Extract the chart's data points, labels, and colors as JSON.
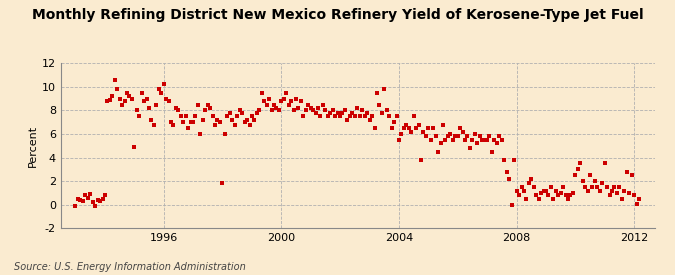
{
  "title": "Monthly Refining District New Mexico Refinery Yield of Kerosene-Type Jet Fuel",
  "ylabel": "Percent",
  "source": "Source: U.S. Energy Information Administration",
  "background_color": "#faebd0",
  "dot_color": "#cc0000",
  "ylim": [
    -2,
    12
  ],
  "yticks": [
    -2,
    0,
    2,
    4,
    6,
    8,
    10,
    12
  ],
  "xlim_start": 1992.5,
  "xlim_end": 2012.7,
  "xticks": [
    1996,
    2000,
    2004,
    2008,
    2012
  ],
  "data_points": [
    [
      1993.0,
      -0.1
    ],
    [
      1993.08,
      0.5
    ],
    [
      1993.17,
      0.4
    ],
    [
      1993.25,
      0.3
    ],
    [
      1993.33,
      0.8
    ],
    [
      1993.42,
      0.6
    ],
    [
      1993.5,
      0.9
    ],
    [
      1993.58,
      0.2
    ],
    [
      1993.67,
      -0.1
    ],
    [
      1993.75,
      0.4
    ],
    [
      1993.83,
      0.3
    ],
    [
      1993.92,
      0.5
    ],
    [
      1994.0,
      0.8
    ],
    [
      1994.08,
      8.8
    ],
    [
      1994.17,
      8.9
    ],
    [
      1994.25,
      9.2
    ],
    [
      1994.33,
      10.6
    ],
    [
      1994.42,
      9.8
    ],
    [
      1994.5,
      9.0
    ],
    [
      1994.58,
      8.5
    ],
    [
      1994.67,
      8.8
    ],
    [
      1994.75,
      9.5
    ],
    [
      1994.83,
      9.2
    ],
    [
      1994.92,
      9.0
    ],
    [
      1995.0,
      4.9
    ],
    [
      1995.08,
      8.0
    ],
    [
      1995.17,
      7.5
    ],
    [
      1995.25,
      9.5
    ],
    [
      1995.33,
      8.8
    ],
    [
      1995.42,
      9.0
    ],
    [
      1995.5,
      8.2
    ],
    [
      1995.58,
      7.2
    ],
    [
      1995.67,
      6.8
    ],
    [
      1995.75,
      8.5
    ],
    [
      1995.83,
      9.8
    ],
    [
      1995.92,
      9.5
    ],
    [
      1996.0,
      10.2
    ],
    [
      1996.08,
      9.0
    ],
    [
      1996.17,
      8.8
    ],
    [
      1996.25,
      7.0
    ],
    [
      1996.33,
      6.8
    ],
    [
      1996.42,
      8.2
    ],
    [
      1996.5,
      8.0
    ],
    [
      1996.58,
      7.5
    ],
    [
      1996.67,
      7.0
    ],
    [
      1996.75,
      7.5
    ],
    [
      1996.83,
      6.5
    ],
    [
      1996.92,
      7.0
    ],
    [
      1997.0,
      7.0
    ],
    [
      1997.08,
      7.5
    ],
    [
      1997.17,
      8.5
    ],
    [
      1997.25,
      6.0
    ],
    [
      1997.33,
      7.2
    ],
    [
      1997.42,
      8.0
    ],
    [
      1997.5,
      8.5
    ],
    [
      1997.58,
      8.2
    ],
    [
      1997.67,
      7.5
    ],
    [
      1997.75,
      6.8
    ],
    [
      1997.83,
      7.2
    ],
    [
      1997.92,
      7.0
    ],
    [
      1998.0,
      1.8
    ],
    [
      1998.08,
      6.0
    ],
    [
      1998.17,
      7.5
    ],
    [
      1998.25,
      7.8
    ],
    [
      1998.33,
      7.2
    ],
    [
      1998.42,
      6.8
    ],
    [
      1998.5,
      7.5
    ],
    [
      1998.58,
      8.0
    ],
    [
      1998.67,
      7.8
    ],
    [
      1998.75,
      7.0
    ],
    [
      1998.83,
      7.2
    ],
    [
      1998.92,
      6.8
    ],
    [
      1999.0,
      7.5
    ],
    [
      1999.08,
      7.2
    ],
    [
      1999.17,
      7.8
    ],
    [
      1999.25,
      8.0
    ],
    [
      1999.33,
      9.5
    ],
    [
      1999.42,
      8.8
    ],
    [
      1999.5,
      8.5
    ],
    [
      1999.58,
      9.0
    ],
    [
      1999.67,
      8.0
    ],
    [
      1999.75,
      8.5
    ],
    [
      1999.83,
      8.2
    ],
    [
      1999.92,
      8.0
    ],
    [
      2000.0,
      8.8
    ],
    [
      2000.08,
      9.0
    ],
    [
      2000.17,
      9.5
    ],
    [
      2000.25,
      8.5
    ],
    [
      2000.33,
      8.8
    ],
    [
      2000.42,
      8.0
    ],
    [
      2000.5,
      9.0
    ],
    [
      2000.58,
      8.2
    ],
    [
      2000.67,
      8.8
    ],
    [
      2000.75,
      7.5
    ],
    [
      2000.83,
      8.0
    ],
    [
      2000.92,
      8.5
    ],
    [
      2001.0,
      8.2
    ],
    [
      2001.08,
      8.0
    ],
    [
      2001.17,
      7.8
    ],
    [
      2001.25,
      8.2
    ],
    [
      2001.33,
      7.5
    ],
    [
      2001.42,
      8.5
    ],
    [
      2001.5,
      8.0
    ],
    [
      2001.58,
      7.5
    ],
    [
      2001.67,
      7.8
    ],
    [
      2001.75,
      8.0
    ],
    [
      2001.83,
      7.5
    ],
    [
      2001.92,
      7.8
    ],
    [
      2002.0,
      7.5
    ],
    [
      2002.08,
      7.8
    ],
    [
      2002.17,
      8.0
    ],
    [
      2002.25,
      7.2
    ],
    [
      2002.33,
      7.5
    ],
    [
      2002.42,
      7.8
    ],
    [
      2002.5,
      7.5
    ],
    [
      2002.58,
      8.2
    ],
    [
      2002.67,
      7.5
    ],
    [
      2002.75,
      8.0
    ],
    [
      2002.83,
      7.5
    ],
    [
      2002.92,
      7.8
    ],
    [
      2003.0,
      7.2
    ],
    [
      2003.08,
      7.5
    ],
    [
      2003.17,
      6.5
    ],
    [
      2003.25,
      9.5
    ],
    [
      2003.33,
      8.5
    ],
    [
      2003.42,
      7.8
    ],
    [
      2003.5,
      9.8
    ],
    [
      2003.58,
      8.0
    ],
    [
      2003.67,
      7.5
    ],
    [
      2003.75,
      6.5
    ],
    [
      2003.83,
      7.0
    ],
    [
      2003.92,
      7.5
    ],
    [
      2004.0,
      5.5
    ],
    [
      2004.08,
      6.0
    ],
    [
      2004.17,
      6.5
    ],
    [
      2004.25,
      6.8
    ],
    [
      2004.33,
      6.5
    ],
    [
      2004.42,
      6.2
    ],
    [
      2004.5,
      7.5
    ],
    [
      2004.58,
      6.5
    ],
    [
      2004.67,
      6.8
    ],
    [
      2004.75,
      3.8
    ],
    [
      2004.83,
      6.2
    ],
    [
      2004.92,
      5.8
    ],
    [
      2005.0,
      6.5
    ],
    [
      2005.08,
      5.5
    ],
    [
      2005.17,
      6.5
    ],
    [
      2005.25,
      5.8
    ],
    [
      2005.33,
      4.5
    ],
    [
      2005.42,
      5.2
    ],
    [
      2005.5,
      6.8
    ],
    [
      2005.58,
      5.5
    ],
    [
      2005.67,
      5.8
    ],
    [
      2005.75,
      6.0
    ],
    [
      2005.83,
      5.5
    ],
    [
      2005.92,
      5.8
    ],
    [
      2006.0,
      5.8
    ],
    [
      2006.08,
      6.5
    ],
    [
      2006.17,
      6.2
    ],
    [
      2006.25,
      5.5
    ],
    [
      2006.33,
      5.8
    ],
    [
      2006.42,
      4.8
    ],
    [
      2006.5,
      5.5
    ],
    [
      2006.58,
      6.0
    ],
    [
      2006.67,
      5.2
    ],
    [
      2006.75,
      5.8
    ],
    [
      2006.83,
      5.5
    ],
    [
      2006.92,
      5.5
    ],
    [
      2007.0,
      5.5
    ],
    [
      2007.08,
      5.8
    ],
    [
      2007.17,
      4.5
    ],
    [
      2007.25,
      5.5
    ],
    [
      2007.33,
      5.2
    ],
    [
      2007.42,
      5.8
    ],
    [
      2007.5,
      5.5
    ],
    [
      2007.58,
      3.8
    ],
    [
      2007.67,
      2.8
    ],
    [
      2007.75,
      2.2
    ],
    [
      2007.83,
      0.0
    ],
    [
      2007.92,
      3.8
    ],
    [
      2008.0,
      1.2
    ],
    [
      2008.08,
      0.8
    ],
    [
      2008.17,
      1.5
    ],
    [
      2008.25,
      1.2
    ],
    [
      2008.33,
      0.5
    ],
    [
      2008.42,
      1.8
    ],
    [
      2008.5,
      2.2
    ],
    [
      2008.58,
      1.5
    ],
    [
      2008.67,
      0.8
    ],
    [
      2008.75,
      0.5
    ],
    [
      2008.83,
      1.0
    ],
    [
      2008.92,
      1.2
    ],
    [
      2009.0,
      1.2
    ],
    [
      2009.08,
      0.8
    ],
    [
      2009.17,
      1.5
    ],
    [
      2009.25,
      0.5
    ],
    [
      2009.33,
      1.2
    ],
    [
      2009.42,
      0.8
    ],
    [
      2009.5,
      1.0
    ],
    [
      2009.58,
      1.5
    ],
    [
      2009.67,
      0.8
    ],
    [
      2009.75,
      0.5
    ],
    [
      2009.83,
      0.8
    ],
    [
      2009.92,
      1.0
    ],
    [
      2010.0,
      2.5
    ],
    [
      2010.08,
      3.0
    ],
    [
      2010.17,
      3.5
    ],
    [
      2010.25,
      2.0
    ],
    [
      2010.33,
      1.5
    ],
    [
      2010.42,
      1.2
    ],
    [
      2010.5,
      2.5
    ],
    [
      2010.58,
      1.5
    ],
    [
      2010.67,
      2.0
    ],
    [
      2010.75,
      1.5
    ],
    [
      2010.83,
      1.2
    ],
    [
      2010.92,
      1.8
    ],
    [
      2011.0,
      3.5
    ],
    [
      2011.08,
      1.5
    ],
    [
      2011.17,
      0.8
    ],
    [
      2011.25,
      1.2
    ],
    [
      2011.33,
      1.5
    ],
    [
      2011.42,
      1.0
    ],
    [
      2011.5,
      1.5
    ],
    [
      2011.58,
      0.5
    ],
    [
      2011.67,
      1.2
    ],
    [
      2011.75,
      2.8
    ],
    [
      2011.83,
      1.0
    ],
    [
      2011.92,
      2.5
    ],
    [
      2012.0,
      0.8
    ],
    [
      2012.08,
      0.1
    ],
    [
      2012.17,
      0.5
    ]
  ]
}
